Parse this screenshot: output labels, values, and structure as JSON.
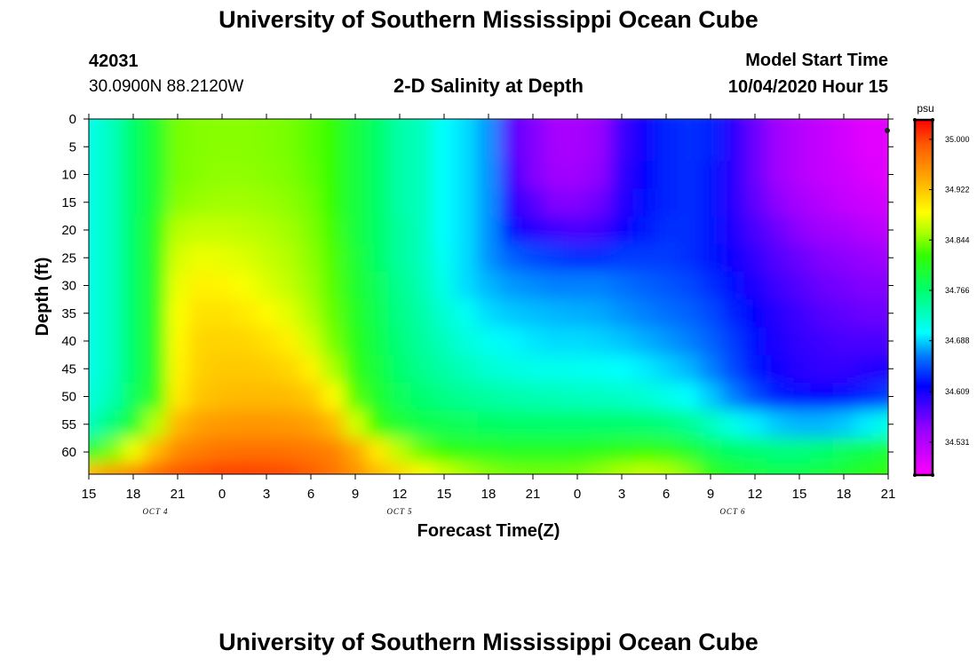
{
  "page": {
    "title": "University of Southern Mississippi Ocean Cube",
    "footer_title": "University of Southern Mississippi Ocean Cube",
    "station_id": "42031",
    "coordinates": "30.0900N 88.2120W",
    "plot_title": "2-D Salinity at Depth",
    "model_start_label": "Model Start Time",
    "model_start_value": "10/04/2020 Hour 15"
  },
  "chart_data": {
    "type": "heatmap",
    "title": "2-D Salinity at Depth",
    "xlabel": "Forecast Time(Z)",
    "ylabel": "Depth (ft)",
    "x_ticks": [
      "15",
      "18",
      "21",
      "0",
      "3",
      "6",
      "9",
      "12",
      "15",
      "18",
      "21",
      "0",
      "3",
      "6",
      "9",
      "12",
      "15",
      "18",
      "21"
    ],
    "x_hours": [
      0,
      3,
      6,
      9,
      12,
      15,
      18,
      21,
      24,
      27,
      30,
      33,
      36,
      39,
      42,
      45,
      48,
      51,
      54
    ],
    "day_labels": [
      {
        "label": "OCT 4",
        "hour": 4.5
      },
      {
        "label": "OCT 5",
        "hour": 21
      },
      {
        "label": "OCT 6",
        "hour": 43.5
      }
    ],
    "y_ticks": [
      "0",
      "5",
      "10",
      "15",
      "20",
      "25",
      "30",
      "35",
      "40",
      "45",
      "50",
      "55",
      "60"
    ],
    "ylim": [
      0,
      64
    ],
    "colorbar": {
      "unit": "psu",
      "min": 34.48,
      "max": 35.03,
      "tick_labels": [
        "35.000",
        "34.922",
        "34.844",
        "34.766",
        "34.688",
        "34.609",
        "34.531"
      ],
      "tick_values": [
        35.0,
        34.922,
        34.844,
        34.766,
        34.688,
        34.609,
        34.531
      ],
      "colormap": [
        [
          0.0,
          "#ff00ff"
        ],
        [
          0.13,
          "#9600ff"
        ],
        [
          0.25,
          "#0000ff"
        ],
        [
          0.33,
          "#0073ff"
        ],
        [
          0.4,
          "#00ffff"
        ],
        [
          0.52,
          "#00ff6e"
        ],
        [
          0.62,
          "#32ff00"
        ],
        [
          0.68,
          "#a8ff00"
        ],
        [
          0.74,
          "#ffff00"
        ],
        [
          0.84,
          "#ffa500"
        ],
        [
          0.93,
          "#ff5a00"
        ],
        [
          1.0,
          "#ff0000"
        ]
      ]
    },
    "grid_hours": [
      0,
      1.5,
      3,
      4.5,
      6,
      7.5,
      9,
      10.5,
      12,
      13.5,
      15,
      16.5,
      18,
      19.5,
      21,
      22.5,
      24,
      25.5,
      27,
      28.5,
      30,
      31.5,
      33,
      34.5,
      36,
      37.5,
      39,
      40.5,
      42,
      43.5,
      45,
      46.5,
      48,
      49.5,
      51,
      52.5,
      54
    ],
    "grid_depths": [
      0,
      5,
      10,
      15,
      20,
      25,
      30,
      35,
      40,
      45,
      50,
      55,
      60,
      64
    ],
    "salinity_psu": [
      [
        34.71,
        34.73,
        34.77,
        34.8,
        34.84,
        34.844,
        34.845,
        34.845,
        34.843,
        34.84,
        34.832,
        34.82,
        34.79,
        34.77,
        34.74,
        34.73,
        34.7,
        34.69,
        34.67,
        34.58,
        34.56,
        34.54,
        34.54,
        34.55,
        34.59,
        34.61,
        34.63,
        34.635,
        34.63,
        34.6,
        34.57,
        34.545,
        34.53,
        34.52,
        34.51,
        34.5,
        34.5
      ],
      [
        34.71,
        34.73,
        34.77,
        34.8,
        34.84,
        34.844,
        34.845,
        34.845,
        34.843,
        34.84,
        34.832,
        34.82,
        34.79,
        34.77,
        34.74,
        34.73,
        34.7,
        34.69,
        34.67,
        34.58,
        34.56,
        34.54,
        34.54,
        34.55,
        34.59,
        34.61,
        34.63,
        34.635,
        34.63,
        34.6,
        34.57,
        34.545,
        34.53,
        34.52,
        34.51,
        34.5,
        34.5
      ],
      [
        34.71,
        34.73,
        34.77,
        34.8,
        34.84,
        34.845,
        34.847,
        34.847,
        34.845,
        34.842,
        34.834,
        34.82,
        34.79,
        34.77,
        34.74,
        34.73,
        34.7,
        34.69,
        34.67,
        34.59,
        34.56,
        34.545,
        34.545,
        34.555,
        34.595,
        34.615,
        34.63,
        34.635,
        34.625,
        34.6,
        34.57,
        34.545,
        34.53,
        34.52,
        34.515,
        34.505,
        34.5
      ],
      [
        34.71,
        34.73,
        34.77,
        34.8,
        34.845,
        34.85,
        34.852,
        34.852,
        34.85,
        34.846,
        34.838,
        34.82,
        34.79,
        34.77,
        34.74,
        34.73,
        34.7,
        34.69,
        34.67,
        34.6,
        34.58,
        34.56,
        34.56,
        34.57,
        34.6,
        34.62,
        34.63,
        34.635,
        34.625,
        34.6,
        34.575,
        34.555,
        34.54,
        34.53,
        34.52,
        34.515,
        34.51
      ],
      [
        34.71,
        34.73,
        34.77,
        34.81,
        34.86,
        34.865,
        34.865,
        34.862,
        34.858,
        34.852,
        34.842,
        34.825,
        34.79,
        34.77,
        34.745,
        34.73,
        34.7,
        34.69,
        34.67,
        34.62,
        34.6,
        34.59,
        34.585,
        34.59,
        34.61,
        34.625,
        34.635,
        34.635,
        34.625,
        34.605,
        34.585,
        34.57,
        34.555,
        34.545,
        34.54,
        34.53,
        34.525
      ],
      [
        34.71,
        34.73,
        34.77,
        34.81,
        34.872,
        34.88,
        34.878,
        34.874,
        34.866,
        34.858,
        34.846,
        34.828,
        34.795,
        34.77,
        34.745,
        34.73,
        34.705,
        34.69,
        34.67,
        34.655,
        34.645,
        34.64,
        34.635,
        34.635,
        34.64,
        34.64,
        34.64,
        34.635,
        34.625,
        34.61,
        34.595,
        34.58,
        34.57,
        34.56,
        34.555,
        34.55,
        34.545
      ],
      [
        34.71,
        34.73,
        34.77,
        34.81,
        34.88,
        34.895,
        34.893,
        34.885,
        34.874,
        34.864,
        34.85,
        34.83,
        34.8,
        34.775,
        34.75,
        34.735,
        34.71,
        34.69,
        34.68,
        34.672,
        34.668,
        34.665,
        34.665,
        34.665,
        34.66,
        34.655,
        34.65,
        34.645,
        34.635,
        34.62,
        34.605,
        34.59,
        34.58,
        34.57,
        34.565,
        34.56,
        34.56
      ],
      [
        34.71,
        34.73,
        34.77,
        34.81,
        34.886,
        34.905,
        34.905,
        34.9,
        34.89,
        34.876,
        34.856,
        34.834,
        34.805,
        34.78,
        34.755,
        34.74,
        34.72,
        34.705,
        34.69,
        34.685,
        34.682,
        34.68,
        34.678,
        34.676,
        34.67,
        34.665,
        34.66,
        34.655,
        34.645,
        34.63,
        34.615,
        34.6,
        34.59,
        34.58,
        34.575,
        34.57,
        34.57
      ],
      [
        34.71,
        34.73,
        34.77,
        34.81,
        34.89,
        34.912,
        34.914,
        34.912,
        34.906,
        34.895,
        34.87,
        34.84,
        34.81,
        34.785,
        34.76,
        34.745,
        34.73,
        34.715,
        34.705,
        34.698,
        34.693,
        34.69,
        34.69,
        34.688,
        34.684,
        34.678,
        34.672,
        34.665,
        34.655,
        34.64,
        34.62,
        34.605,
        34.595,
        34.59,
        34.585,
        34.585,
        34.585
      ],
      [
        34.71,
        34.73,
        34.77,
        34.81,
        34.893,
        34.916,
        34.92,
        34.92,
        34.918,
        34.912,
        34.895,
        34.855,
        34.815,
        34.79,
        34.765,
        34.752,
        34.74,
        34.73,
        34.72,
        34.714,
        34.71,
        34.708,
        34.706,
        34.704,
        34.7,
        34.695,
        34.688,
        34.68,
        34.665,
        34.645,
        34.625,
        34.61,
        34.6,
        34.595,
        34.595,
        34.6,
        34.605
      ],
      [
        34.715,
        34.735,
        34.775,
        34.815,
        34.9,
        34.922,
        34.928,
        34.93,
        34.93,
        34.928,
        34.92,
        34.89,
        34.83,
        34.8,
        34.775,
        34.765,
        34.755,
        34.748,
        34.742,
        34.738,
        34.735,
        34.733,
        34.73,
        34.728,
        34.725,
        34.72,
        34.71,
        34.7,
        34.685,
        34.665,
        34.645,
        34.628,
        34.62,
        34.615,
        34.62,
        34.63,
        34.64
      ],
      [
        34.73,
        34.76,
        34.8,
        34.86,
        34.93,
        34.945,
        34.95,
        34.952,
        34.952,
        34.95,
        34.945,
        34.93,
        34.87,
        34.82,
        34.795,
        34.785,
        34.78,
        34.775,
        34.772,
        34.77,
        34.769,
        34.768,
        34.768,
        34.768,
        34.768,
        34.765,
        34.76,
        34.75,
        34.73,
        34.71,
        34.695,
        34.685,
        34.68,
        34.68,
        34.685,
        34.695,
        34.71
      ],
      [
        34.8,
        34.84,
        34.88,
        34.93,
        34.96,
        34.97,
        34.975,
        34.977,
        34.977,
        34.975,
        34.972,
        34.965,
        34.94,
        34.9,
        34.86,
        34.835,
        34.82,
        34.812,
        34.808,
        34.805,
        34.805,
        34.805,
        34.806,
        34.81,
        34.815,
        34.82,
        34.815,
        34.8,
        34.78,
        34.77,
        34.765,
        34.76,
        34.76,
        34.765,
        34.775,
        34.785,
        34.795
      ],
      [
        34.93,
        34.95,
        34.965,
        34.985,
        34.995,
        35.0,
        35.005,
        35.005,
        35.003,
        35.0,
        34.99,
        34.975,
        34.955,
        34.93,
        34.91,
        34.89,
        34.87,
        34.855,
        34.845,
        34.84,
        34.838,
        34.838,
        34.84,
        34.848,
        34.858,
        34.865,
        34.86,
        34.845,
        34.82,
        34.8,
        34.79,
        34.785,
        34.785,
        34.79,
        34.8,
        34.81,
        34.82
      ]
    ]
  }
}
